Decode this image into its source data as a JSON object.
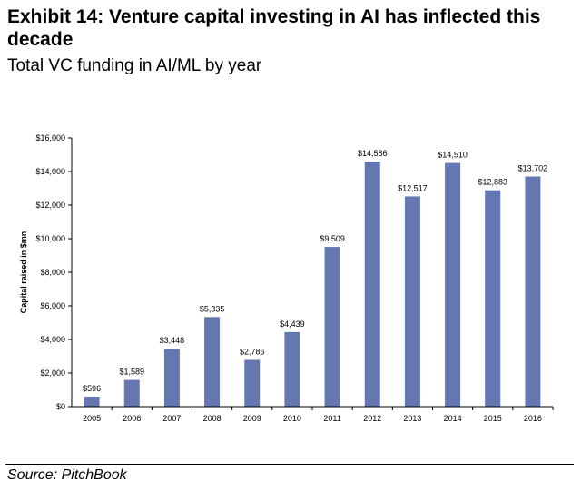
{
  "header": {
    "title": "Exhibit 14: Venture capital investing in AI has inflected this decade",
    "subtitle": "Total VC funding in AI/ML by year"
  },
  "footer": {
    "source": "Source: PitchBook"
  },
  "chart_data": {
    "type": "bar",
    "title": "",
    "xlabel": "",
    "ylabel": "Capital raised in $mn",
    "categories": [
      "2005",
      "2006",
      "2007",
      "2008",
      "2009",
      "2010",
      "2011",
      "2012",
      "2013",
      "2014",
      "2015",
      "2016"
    ],
    "values": [
      596,
      1589,
      3448,
      5335,
      2786,
      4439,
      9509,
      14586,
      12517,
      14510,
      12883,
      13702
    ],
    "data_labels": [
      "$596",
      "$1,589",
      "$3,448",
      "$5,335",
      "$2,786",
      "$4,439",
      "$9,509",
      "$14,586",
      "$12,517",
      "$14,510",
      "$12,883",
      "$13,702"
    ],
    "ylim": [
      0,
      16000
    ],
    "yticks": [
      0,
      2000,
      4000,
      6000,
      8000,
      10000,
      12000,
      14000,
      16000
    ],
    "ytick_labels": [
      "$0",
      "$2,000",
      "$4,000",
      "$6,000",
      "$8,000",
      "$10,000",
      "$12,000",
      "$14,000",
      "$16,000"
    ],
    "grid": false,
    "legend": "none",
    "bar_color": "#6477B0"
  }
}
